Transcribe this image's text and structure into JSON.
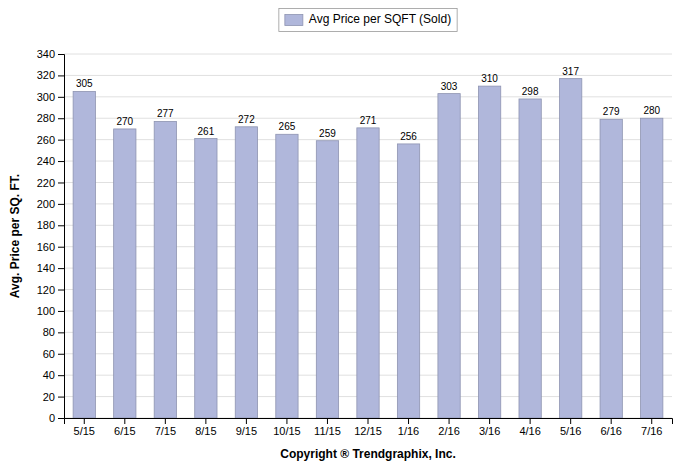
{
  "chart_data": {
    "type": "bar",
    "categories": [
      "5/15",
      "6/15",
      "7/15",
      "8/15",
      "9/15",
      "10/15",
      "11/15",
      "12/15",
      "1/16",
      "2/16",
      "3/16",
      "4/16",
      "5/16",
      "6/16",
      "7/16"
    ],
    "series": [
      {
        "name": "Avg Price per SQFT (Sold)",
        "color": "#b0b7db",
        "values": [
          305,
          270,
          277,
          261,
          272,
          265,
          259,
          271,
          256,
          303,
          310,
          298,
          317,
          279,
          280
        ]
      }
    ],
    "ylim": [
      0,
      340
    ],
    "yticks": [
      0,
      20,
      40,
      60,
      80,
      100,
      120,
      140,
      160,
      180,
      200,
      220,
      240,
      260,
      280,
      300,
      320,
      340
    ],
    "ylabel": "Avg. Price per SQ. FT.",
    "xlabel": "Copyright ® Trendgraphix, Inc.",
    "grid": true,
    "legend": "top",
    "data_labels": true
  }
}
